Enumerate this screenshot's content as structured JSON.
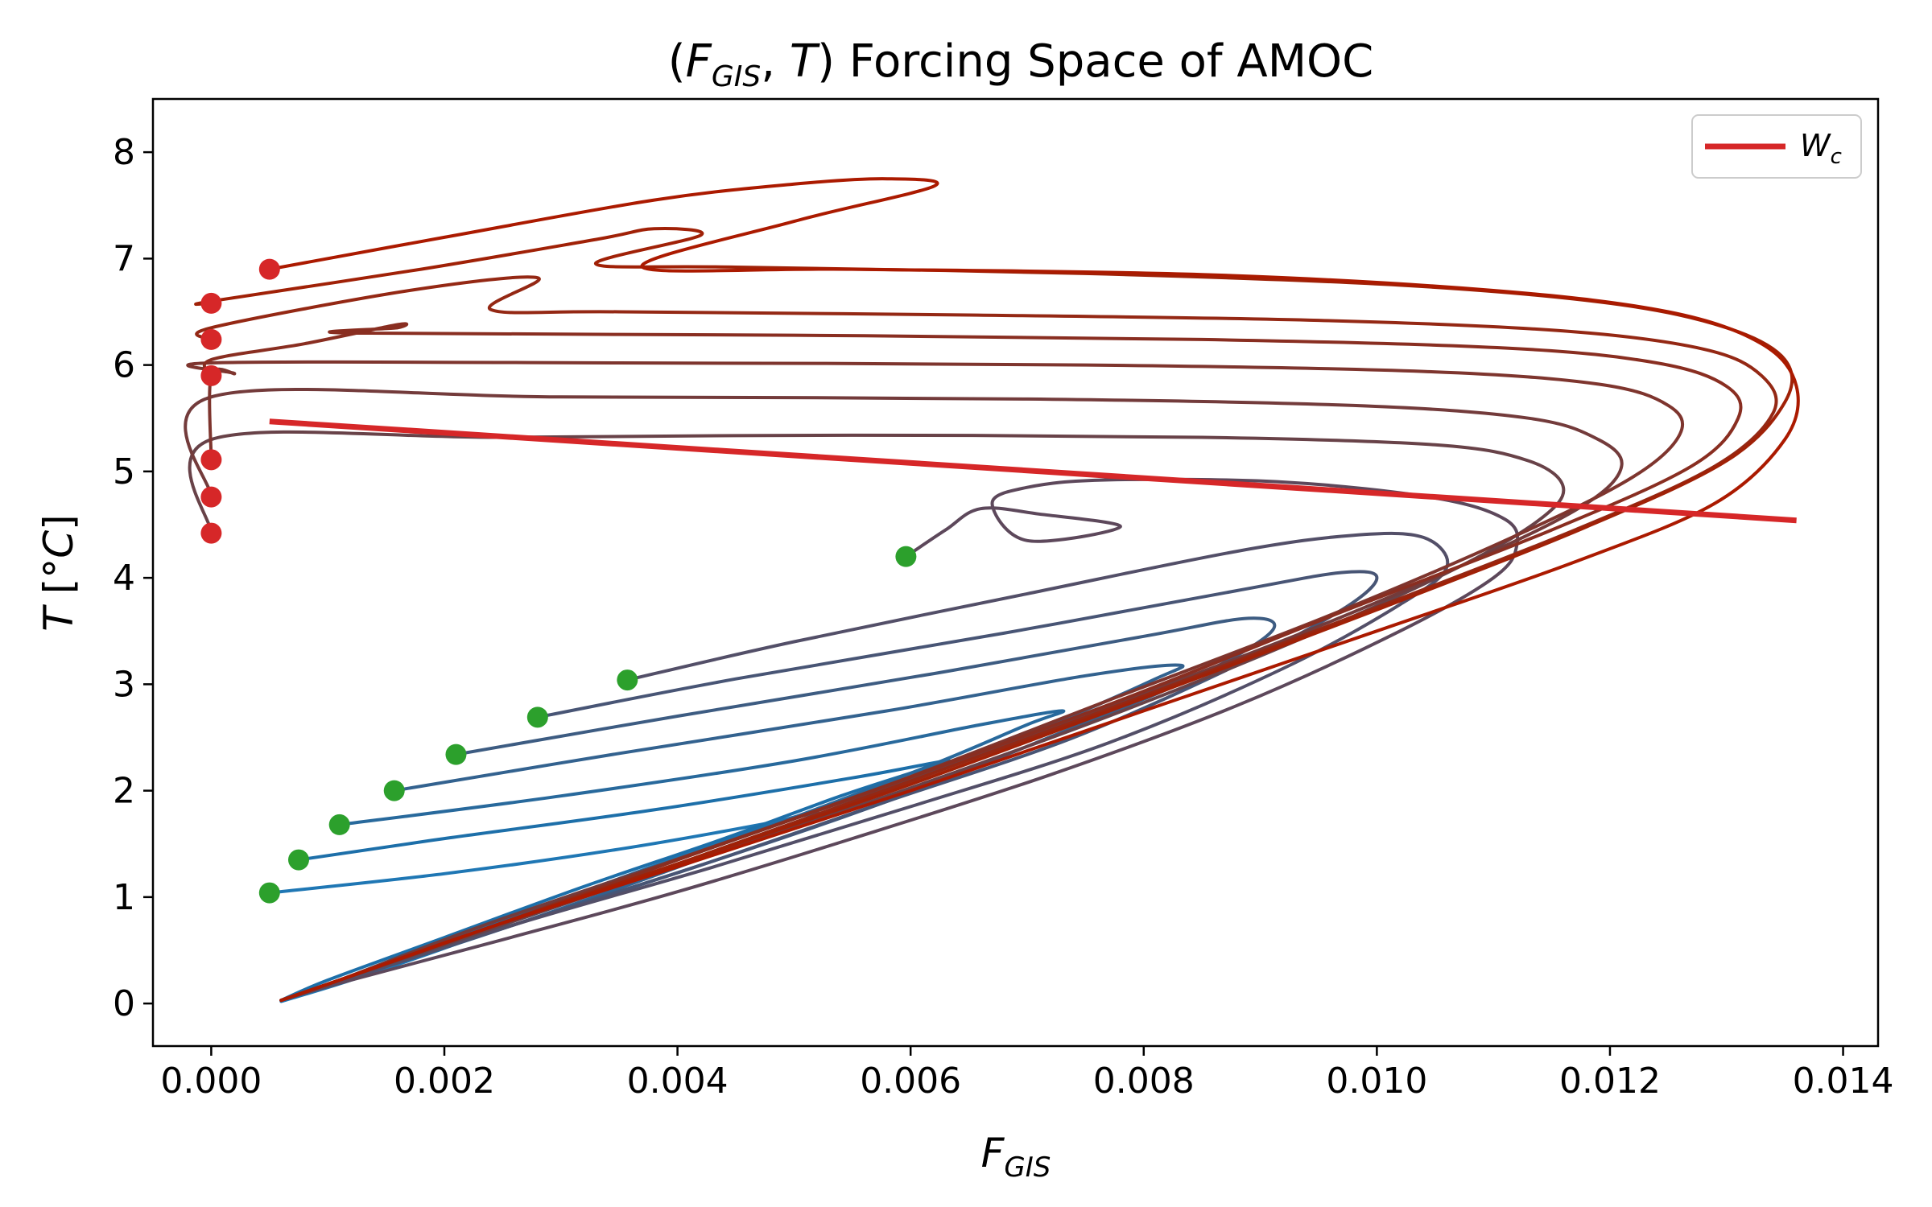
{
  "chart_data": {
    "type": "line",
    "title": "(F_GIS, T) Forcing Space of AMOC",
    "title_parts": {
      "open": "(",
      "f": "F",
      "f_sub": "GIS",
      "sep": ", ",
      "t": "T",
      "close": ")",
      "rest": " Forcing Space of AMOC"
    },
    "xlabel": "F_GIS",
    "xlabel_parts": {
      "f": "F",
      "sub": "GIS"
    },
    "ylabel": "T [°C]",
    "ylabel_parts": {
      "t": "T",
      "open": " [°",
      "c": "C",
      "close": "]"
    },
    "xlim": [
      -0.0005,
      0.0143
    ],
    "ylim": [
      -0.4,
      8.5
    ],
    "xticks": [
      0.0,
      0.002,
      0.004,
      0.006,
      0.008,
      0.01,
      0.012,
      0.014
    ],
    "xtick_labels": [
      "0.000",
      "0.002",
      "0.004",
      "0.006",
      "0.008",
      "0.010",
      "0.012",
      "0.014"
    ],
    "yticks": [
      0,
      1,
      2,
      3,
      4,
      5,
      6,
      7,
      8
    ],
    "ytick_labels": [
      "0",
      "1",
      "2",
      "3",
      "4",
      "5",
      "6",
      "7",
      "8"
    ],
    "grid": false,
    "legend": {
      "placement": "top-right",
      "entries": [
        {
          "name": "W_c",
          "name_parts": {
            "w": "W",
            "sub": "c"
          },
          "color": "#d62728"
        }
      ]
    },
    "wc_line": {
      "color": "#d62728",
      "x": [
        0.0005,
        0.0136
      ],
      "y": [
        5.47,
        4.54
      ]
    },
    "colors": {
      "start_marker": "#2ca02c",
      "end_marker": "#d62728",
      "cold": "#1f77b4",
      "warm": "#d62728"
    },
    "series": [
      {
        "color": "#1f77b4",
        "x": [
          0.0005,
          0.002,
          0.0035,
          0.0048,
          0.0052,
          0.0049,
          0.0042,
          0.0032,
          0.0022,
          0.0012,
          0.0006
        ],
        "y": [
          1.04,
          1.22,
          1.45,
          1.7,
          1.8,
          1.72,
          1.45,
          1.05,
          0.6,
          0.22,
          0.02
        ]
      },
      {
        "color": "#1d6fa9",
        "x": [
          0.00075,
          0.002,
          0.0038,
          0.0055,
          0.0063,
          0.0061,
          0.0054,
          0.0044,
          0.0032,
          0.002,
          0.001,
          0.0006
        ],
        "y": [
          1.35,
          1.55,
          1.82,
          2.12,
          2.28,
          2.2,
          1.95,
          1.55,
          1.1,
          0.62,
          0.22,
          0.03
        ]
      },
      {
        "color": "#28699c",
        "x": [
          0.0011,
          0.003,
          0.005,
          0.0066,
          0.0073,
          0.007,
          0.0062,
          0.005,
          0.0036,
          0.0022,
          0.0011,
          0.0006
        ],
        "y": [
          1.68,
          1.95,
          2.28,
          2.62,
          2.75,
          2.62,
          2.25,
          1.75,
          1.2,
          0.66,
          0.22,
          0.03
        ]
      },
      {
        "color": "#33628f",
        "x": [
          0.00157,
          0.0035,
          0.0058,
          0.0075,
          0.0083,
          0.0081,
          0.0072,
          0.0058,
          0.0042,
          0.0026,
          0.0012,
          0.0006
        ],
        "y": [
          2.0,
          2.35,
          2.75,
          3.08,
          3.18,
          3.05,
          2.62,
          2.02,
          1.36,
          0.74,
          0.24,
          0.03
        ]
      },
      {
        "color": "#3d5c82",
        "x": [
          0.0021,
          0.004,
          0.0062,
          0.008,
          0.0089,
          0.0091,
          0.0085,
          0.0073,
          0.0058,
          0.0042,
          0.0026,
          0.0012,
          0.0006
        ],
        "y": [
          2.34,
          2.7,
          3.1,
          3.45,
          3.62,
          3.5,
          3.1,
          2.55,
          1.9,
          1.3,
          0.74,
          0.24,
          0.03
        ]
      },
      {
        "color": "#485575",
        "x": [
          0.0028,
          0.0045,
          0.0068,
          0.0088,
          0.0097,
          0.01,
          0.0097,
          0.0088,
          0.0074,
          0.0058,
          0.0042,
          0.0026,
          0.0012,
          0.0006
        ],
        "y": [
          2.69,
          3.05,
          3.48,
          3.88,
          4.05,
          4.0,
          3.7,
          3.18,
          2.5,
          1.9,
          1.3,
          0.74,
          0.24,
          0.03
        ]
      },
      {
        "color": "#534f68",
        "x": [
          0.00357,
          0.005,
          0.007,
          0.0088,
          0.0098,
          0.0104,
          0.0106,
          0.0102,
          0.0092,
          0.0077,
          0.006,
          0.0043,
          0.0026,
          0.0012,
          0.0006
        ],
        "y": [
          3.04,
          3.4,
          3.85,
          4.25,
          4.4,
          4.38,
          4.1,
          3.75,
          3.15,
          2.45,
          1.85,
          1.28,
          0.74,
          0.24,
          0.03
        ]
      },
      {
        "color": "#5d485b",
        "x": [
          0.00596,
          0.0063,
          0.0066,
          0.0071,
          0.0078,
          0.007,
          0.0067,
          0.007,
          0.0077,
          0.0092,
          0.0105,
          0.0111,
          0.0112,
          0.011,
          0.0102,
          0.0088,
          0.0072,
          0.0055,
          0.004,
          0.0025,
          0.0012,
          0.0006
        ],
        "y": [
          4.2,
          4.45,
          4.65,
          4.6,
          4.48,
          4.35,
          4.7,
          4.85,
          4.92,
          4.9,
          4.75,
          4.55,
          4.3,
          4.0,
          3.5,
          2.8,
          2.15,
          1.55,
          1.05,
          0.6,
          0.22,
          0.03
        ]
      },
      {
        "color": "#684248",
        "x": [
          0.0,
          0.0,
          0.0025,
          0.0055,
          0.0085,
          0.0105,
          0.0113,
          0.0116,
          0.0114,
          0.0107,
          0.0094,
          0.0077,
          0.0058,
          0.004,
          0.0024,
          0.0011,
          0.0006
        ],
        "y": [
          4.42,
          5.3,
          5.32,
          5.34,
          5.32,
          5.25,
          5.1,
          4.85,
          4.55,
          4.1,
          3.45,
          2.7,
          1.95,
          1.3,
          0.7,
          0.22,
          0.03
        ]
      },
      {
        "color": "#733b3b",
        "x": [
          0.0,
          0.0,
          0.003,
          0.007,
          0.0098,
          0.0113,
          0.0119,
          0.0121,
          0.0118,
          0.0109,
          0.0094,
          0.0076,
          0.0057,
          0.0039,
          0.0023,
          0.0011,
          0.0006
        ],
        "y": [
          4.76,
          5.7,
          5.7,
          5.68,
          5.62,
          5.5,
          5.3,
          5.05,
          4.7,
          4.2,
          3.5,
          2.75,
          2.0,
          1.32,
          0.72,
          0.22,
          0.03
        ]
      },
      {
        "color": "#7e352e",
        "x": [
          0.0,
          0.0,
          0.0002,
          0.0,
          0.0035,
          0.0075,
          0.0104,
          0.0119,
          0.0125,
          0.0126,
          0.0122,
          0.0112,
          0.0096,
          0.0077,
          0.0058,
          0.004,
          0.0024,
          0.0011,
          0.0006
        ],
        "y": [
          5.11,
          5.9,
          5.92,
          6.02,
          6.02,
          6.0,
          5.94,
          5.82,
          5.62,
          5.35,
          4.95,
          4.4,
          3.65,
          2.85,
          2.05,
          1.35,
          0.72,
          0.22,
          0.03
        ]
      },
      {
        "color": "#892e21",
        "x": [
          0.0,
          0.0,
          0.0008,
          0.0016,
          0.0016,
          0.0012,
          0.005,
          0.0085,
          0.0111,
          0.0124,
          0.013,
          0.0131,
          0.0127,
          0.0115,
          0.0097,
          0.0078,
          0.0058,
          0.004,
          0.0024,
          0.0011,
          0.0006
        ],
        "y": [
          5.9,
          6.05,
          6.2,
          6.38,
          6.35,
          6.3,
          6.28,
          6.24,
          6.16,
          6.02,
          5.8,
          5.5,
          5.05,
          4.45,
          3.68,
          2.85,
          2.05,
          1.35,
          0.72,
          0.22,
          0.03
        ]
      },
      {
        "color": "#942814",
        "x": [
          0.0,
          0.0,
          0.0017,
          0.0028,
          0.0024,
          0.0035,
          0.0065,
          0.0095,
          0.0116,
          0.0128,
          0.0133,
          0.0134,
          0.0129,
          0.0117,
          0.0099,
          0.0079,
          0.0059,
          0.0041,
          0.0024,
          0.0011,
          0.0006
        ],
        "y": [
          6.24,
          6.35,
          6.7,
          6.82,
          6.52,
          6.5,
          6.47,
          6.42,
          6.32,
          6.15,
          5.9,
          5.55,
          5.05,
          4.45,
          3.68,
          2.85,
          2.05,
          1.35,
          0.72,
          0.22,
          0.03
        ]
      },
      {
        "color": "#a02107",
        "x": [
          0.0,
          0.0,
          0.0018,
          0.0033,
          0.0038,
          0.0042,
          0.0033,
          0.0045,
          0.0075,
          0.0102,
          0.012,
          0.013,
          0.0135,
          0.0135,
          0.013,
          0.0118,
          0.01,
          0.008,
          0.006,
          0.0041,
          0.0024,
          0.0011,
          0.0006
        ],
        "y": [
          6.58,
          6.6,
          6.9,
          7.18,
          7.28,
          7.22,
          6.95,
          6.92,
          6.86,
          6.75,
          6.58,
          6.35,
          6.05,
          5.65,
          5.1,
          4.48,
          3.7,
          2.87,
          2.06,
          1.35,
          0.72,
          0.22,
          0.03
        ]
      },
      {
        "color": "#ab1a00",
        "x": [
          0.0005,
          0.002,
          0.0038,
          0.005,
          0.0058,
          0.0062,
          0.005,
          0.0037,
          0.0055,
          0.0085,
          0.011,
          0.0125,
          0.0133,
          0.0136,
          0.0135,
          0.0129,
          0.0117,
          0.01,
          0.008,
          0.006,
          0.0041,
          0.0024,
          0.0011,
          0.0006
        ],
        "y": [
          6.9,
          7.2,
          7.55,
          7.7,
          7.75,
          7.68,
          7.35,
          6.92,
          6.9,
          6.85,
          6.7,
          6.5,
          6.2,
          5.8,
          5.3,
          4.7,
          4.15,
          3.5,
          2.75,
          2.0,
          1.32,
          0.72,
          0.22,
          0.03
        ]
      }
    ],
    "start_points": {
      "x": [
        0.0005,
        0.00075,
        0.0011,
        0.00157,
        0.0021,
        0.0028,
        0.00357,
        0.00596
      ],
      "y": [
        1.04,
        1.35,
        1.68,
        2.0,
        2.34,
        2.69,
        3.04,
        4.2
      ]
    },
    "end_points": {
      "x": [
        0.0,
        0.0,
        0.0,
        0.0,
        0.0,
        0.0,
        0.0005
      ],
      "y": [
        4.42,
        4.76,
        5.11,
        5.9,
        6.24,
        6.58,
        6.9
      ]
    }
  }
}
